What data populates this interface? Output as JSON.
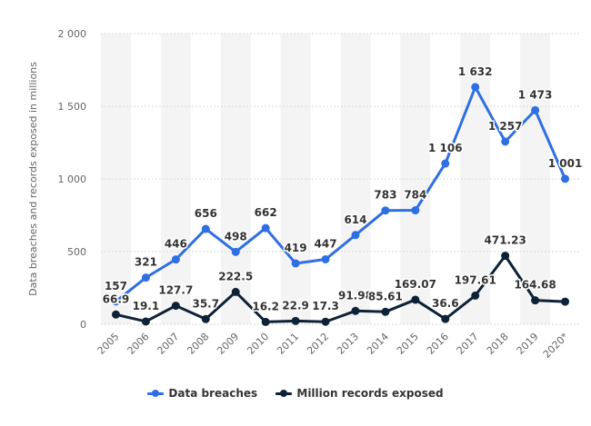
{
  "chart_data": {
    "type": "line",
    "ylabel": "Data breaches and records exposed in millions",
    "categories": [
      "2005",
      "2006",
      "2007",
      "2008",
      "2009",
      "2010",
      "2011",
      "2012",
      "2013",
      "2014",
      "2015",
      "2016",
      "2017",
      "2018",
      "2019",
      "2020*"
    ],
    "ylim": [
      0,
      2000
    ],
    "yticks": [
      0,
      500,
      1000,
      1500,
      2000
    ],
    "ytick_labels": [
      "0",
      "500",
      "1 000",
      "1 500",
      "2 000"
    ],
    "grid": "horizontal",
    "legend_position": "bottom",
    "series": [
      {
        "name": "Data breaches",
        "color": "#2f6fe4",
        "values": [
          157,
          321,
          446,
          656,
          498,
          662,
          419,
          447,
          614,
          783,
          784,
          1106,
          1632,
          1257,
          1473,
          1001
        ],
        "labels": [
          "157",
          "321",
          "446",
          "656",
          "498",
          "662",
          "419",
          "447",
          "614",
          "783",
          "784",
          "1 106",
          "1 632",
          "1 257",
          "1 473",
          "1 001"
        ]
      },
      {
        "name": "Million records exposed",
        "color": "#0d2237",
        "values": [
          66.9,
          19.1,
          127.7,
          35.7,
          222.5,
          16.2,
          22.9,
          17.3,
          91.98,
          85.61,
          169.07,
          36.6,
          197.61,
          471.23,
          164.68,
          155.8
        ],
        "labels": [
          "66.9",
          "19.1",
          "127.7",
          "35.7",
          "222.5",
          "16.2",
          "22.9",
          "17.3",
          "91.98",
          "85.61",
          "169.07",
          "36.6",
          "197.61",
          "471.23",
          "164.68",
          ""
        ]
      }
    ]
  }
}
